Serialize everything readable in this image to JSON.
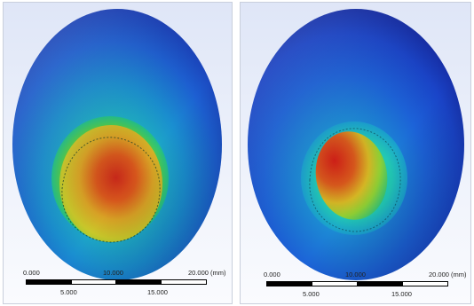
{
  "views": [
    {
      "id": "left",
      "scale_bar": {
        "top_labels": [
          "0.000",
          "10.000",
          "20.000 (mm)"
        ],
        "bottom_labels": [
          "5.000",
          "15.000"
        ]
      }
    },
    {
      "id": "right",
      "scale_bar": {
        "top_labels": [
          "0.000",
          "10.000",
          "20.000 (mm)"
        ],
        "bottom_labels": [
          "5.000",
          "15.000"
        ]
      }
    }
  ],
  "colors": {
    "background_top": "#dfe6f7",
    "contour_low": "#1b3fd0",
    "contour_mid": "#1fbf9a",
    "contour_green": "#3fc23a",
    "contour_yellow": "#d8c021",
    "contour_high": "#d21e14"
  }
}
